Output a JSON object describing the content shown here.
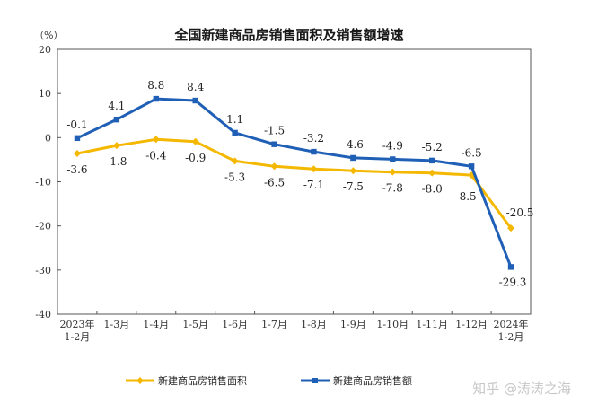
{
  "chart_data": {
    "type": "line",
    "title": "全国新建商品房销售面积及销售额增速",
    "ylabel": "（%）",
    "xlabel": "",
    "ylim": [
      -40,
      20
    ],
    "yticks": [
      20,
      10,
      0,
      -10,
      -20,
      -30,
      -40
    ],
    "grid": false,
    "legend_position": "bottom-left",
    "categories": [
      [
        "2023年",
        "1-2月"
      ],
      [
        "1-3月"
      ],
      [
        "1-4月"
      ],
      [
        "1-5月"
      ],
      [
        "1-6月"
      ],
      [
        "1-7月"
      ],
      [
        "1-8月"
      ],
      [
        "1-9月"
      ],
      [
        "1-10月"
      ],
      [
        "1-11月"
      ],
      [
        "1-12月"
      ],
      [
        "2024年",
        "1-2月"
      ]
    ],
    "series": [
      {
        "name": "新建商品房销售面积",
        "color": "#f5b800",
        "marker": "diamond",
        "values": [
          -3.6,
          -1.8,
          -0.4,
          -0.9,
          -5.3,
          -6.5,
          -7.1,
          -7.5,
          -7.8,
          -8.0,
          -8.5,
          -20.5
        ],
        "labels": [
          "-3.6",
          "-1.8",
          "-0.4",
          "-0.9",
          "-5.3",
          "-6.5",
          "-7.1",
          "-7.5",
          "-7.8",
          "-8.0",
          "-8.5",
          "-20.5"
        ]
      },
      {
        "name": "新建商品房销售额",
        "color": "#1f5fb5",
        "marker": "square",
        "values": [
          -0.1,
          4.1,
          8.8,
          8.4,
          1.1,
          -1.5,
          -3.2,
          -4.6,
          -4.9,
          -5.2,
          -6.5,
          -29.3
        ],
        "labels": [
          "-0.1",
          "4.1",
          "8.8",
          "8.4",
          "1.1",
          "-1.5",
          "-3.2",
          "-4.6",
          "-4.9",
          "-5.2",
          "-6.5",
          "-29.3"
        ]
      }
    ]
  },
  "watermark": "知乎 @涛涛之海"
}
